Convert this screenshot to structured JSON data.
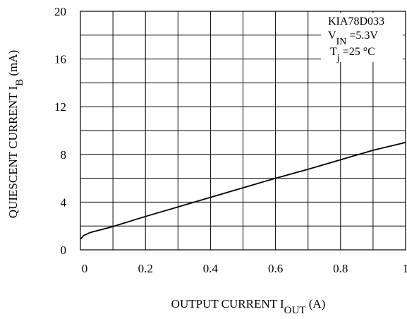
{
  "chart_data": {
    "type": "line",
    "title": "",
    "xlabel": {
      "main": "OUTPUT CURRENT  I",
      "sub": "OUT",
      "unit": "  (A)"
    },
    "ylabel": {
      "main": "QUIESCENT CURRENT  I",
      "sub": "B",
      "unit": "  (mA)"
    },
    "xlim": [
      0,
      1
    ],
    "ylim": [
      0,
      20
    ],
    "x_ticks": [
      0,
      0.1,
      0.2,
      0.3,
      0.4,
      0.5,
      0.6,
      0.7,
      0.8,
      0.9,
      1.0
    ],
    "x_tick_labels": [
      "0",
      "",
      "0.2",
      "",
      "0.4",
      "",
      "0.6",
      "",
      "0.8",
      "",
      "1"
    ],
    "y_ticks": [
      0,
      2,
      4,
      6,
      8,
      10,
      12,
      14,
      16,
      18,
      20
    ],
    "y_tick_labels": [
      "0",
      "",
      "4",
      "",
      "8",
      "",
      "12",
      "",
      "16",
      "",
      "20"
    ],
    "grid": true,
    "annotation": [
      {
        "main": "KIA78D033",
        "sub": "",
        "rest": ""
      },
      {
        "main": "V",
        "sub": "IN",
        "rest": " =5.3V"
      },
      {
        "main": "T",
        "sub": "j",
        "rest": " =25 °C"
      }
    ],
    "series": [
      {
        "x": [
          0,
          0.01,
          0.03,
          0.1,
          0.2,
          0.3,
          0.4,
          0.5,
          0.6,
          0.7,
          0.8,
          0.9,
          1.0
        ],
        "y": [
          0.9,
          1.2,
          1.45,
          1.95,
          2.8,
          3.6,
          4.4,
          5.2,
          6.0,
          6.75,
          7.55,
          8.35,
          9.0
        ]
      }
    ]
  }
}
